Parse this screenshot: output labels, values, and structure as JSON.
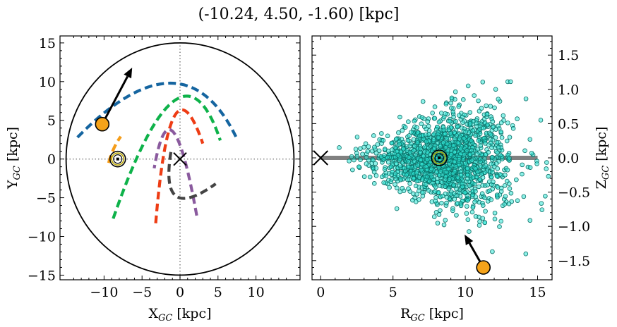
{
  "figure": {
    "title": "(-10.24, 4.50, -1.60) [kpc]"
  },
  "chart_data": [
    {
      "type": "line",
      "panel": "left",
      "xlabel": "X_GC [kpc]",
      "ylabel": "Y_GC [kpc]",
      "xlim": [
        -15.8,
        15.8
      ],
      "ylim": [
        -15.6,
        15.9
      ],
      "xticks": [
        -10,
        -5,
        0,
        5,
        10
      ],
      "yticks": [
        -15,
        -10,
        -5,
        0,
        5,
        10,
        15
      ],
      "xtick_labels": [
        "−10",
        "−5",
        "0",
        "5",
        "10"
      ],
      "ytick_labels": [
        "−15",
        "−10",
        "−5",
        "0",
        "5",
        "10",
        "15"
      ],
      "circle_radius": 15,
      "galactic_center": [
        0,
        0
      ],
      "sun": [
        -8.2,
        0
      ],
      "object": [
        -10.24,
        4.5
      ],
      "velocity_arrow": {
        "from": [
          -10.24,
          4.5
        ],
        "to": [
          -6.3,
          11.8
        ]
      },
      "arms": [
        {
          "color": "#1565a0",
          "start": [
            -13.5,
            2.8
          ],
          "apex": [
            -1.2,
            9.8
          ],
          "end": [
            7.5,
            2.6
          ]
        },
        {
          "color": "#0eb24a",
          "start": [
            -8.8,
            -7.7
          ],
          "apex": [
            -0.8,
            7.5
          ],
          "end": [
            5.3,
            2.4
          ]
        },
        {
          "color": "#ee3c14",
          "start": [
            -3.2,
            -8.3
          ],
          "apex": [
            -0.7,
            5.6
          ],
          "end": [
            3.0,
            2.0
          ]
        },
        {
          "color": "#8a5a9e",
          "start": [
            2.2,
            -7.3
          ],
          "apex": [
            -0.9,
            3.5
          ],
          "end": [
            -3.4,
            -1.2
          ]
        },
        {
          "color": "#444444",
          "start": [
            -1.2,
            0.9
          ],
          "apex": [
            -0.5,
            -4.8
          ],
          "end": [
            4.7,
            -3.2
          ]
        },
        {
          "color": "#f59d1a",
          "start": [
            -9.4,
            -0.5
          ],
          "apex": [
            -8.7,
            1.4
          ],
          "end": [
            -7.8,
            2.9
          ]
        }
      ]
    },
    {
      "type": "scatter",
      "panel": "right",
      "xlabel": "R_GC [kpc]",
      "ylabel": "Z_GC [kpc]",
      "xlim": [
        -0.6,
        16.0
      ],
      "ylim": [
        -1.78,
        1.78
      ],
      "xticks": [
        0,
        5,
        10,
        15
      ],
      "yticks": [
        -1.5,
        -1.0,
        -0.5,
        0.0,
        0.5,
        1.0,
        1.5
      ],
      "xtick_labels": [
        "0",
        "5",
        "10",
        "15"
      ],
      "ytick_labels": [
        "−1.5",
        "−1.0",
        "−0.5",
        "0.0",
        "0.5",
        "1.0",
        "1.5"
      ],
      "disk_line": {
        "x": [
          0,
          15
        ],
        "y": 0
      },
      "galactic_center": [
        0,
        0
      ],
      "sun": [
        8.2,
        0
      ],
      "object": [
        11.25,
        -1.6
      ],
      "velocity_arrow": {
        "from": [
          11.25,
          -1.6
        ],
        "to": [
          9.95,
          -1.12
        ]
      },
      "points": {
        "count": 1500,
        "color": "#2ee6d6",
        "edge": "#0a6e66",
        "r_center": 8.6,
        "r_spread": 2.4,
        "z_spread": 0.22
      }
    }
  ],
  "colors": {
    "sun_ring": "#b9a400",
    "object_fill": "#f5a31a",
    "disk_line": "#808080"
  }
}
